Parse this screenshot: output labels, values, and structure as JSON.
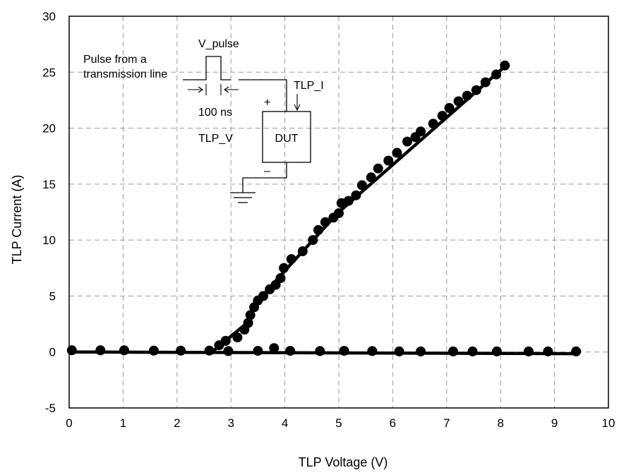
{
  "chart_data": {
    "type": "scatter",
    "xlabel": "TLP Voltage (V)",
    "ylabel": "TLP Current (A)",
    "xlim": [
      0,
      10
    ],
    "ylim": [
      -5,
      30
    ],
    "xticks": [
      0,
      1,
      2,
      3,
      4,
      5,
      6,
      7,
      8,
      9,
      10
    ],
    "yticks": [
      -5,
      0,
      5,
      10,
      15,
      20,
      25,
      30
    ],
    "grid": "dashed",
    "series": [
      {
        "points": [
          [
            0.05,
            0.15
          ],
          [
            0.58,
            0.15
          ],
          [
            1.02,
            0.15
          ],
          [
            1.57,
            0.12
          ],
          [
            2.07,
            0.12
          ],
          [
            2.6,
            0.12
          ],
          [
            2.95,
            0.08
          ],
          [
            3.5,
            0.1
          ],
          [
            3.8,
            0.35
          ],
          [
            4.1,
            0.1
          ],
          [
            4.65,
            0.08
          ],
          [
            5.1,
            0.1
          ],
          [
            5.62,
            0.08
          ],
          [
            6.12,
            0.05
          ],
          [
            6.52,
            0.05
          ],
          [
            7.12,
            0.05
          ],
          [
            7.48,
            0.05
          ],
          [
            7.93,
            0.05
          ],
          [
            8.52,
            0.05
          ],
          [
            8.88,
            0.05
          ],
          [
            9.4,
            0.05
          ]
        ],
        "fit_line": [
          [
            0,
            0.0
          ],
          [
            9.4,
            -0.15
          ]
        ]
      },
      {
        "points": [
          [
            2.78,
            0.6
          ],
          [
            2.9,
            1.0
          ],
          [
            3.12,
            1.3
          ],
          [
            3.25,
            2.0
          ],
          [
            3.32,
            2.6
          ],
          [
            3.36,
            3.3
          ],
          [
            3.43,
            4.0
          ],
          [
            3.5,
            4.6
          ],
          [
            3.6,
            5.0
          ],
          [
            3.72,
            5.6
          ],
          [
            3.83,
            6.0
          ],
          [
            3.92,
            6.6
          ],
          [
            3.98,
            7.5
          ],
          [
            4.12,
            8.3
          ],
          [
            4.33,
            9.0
          ],
          [
            4.52,
            10.0
          ],
          [
            4.62,
            10.9
          ],
          [
            4.75,
            11.6
          ],
          [
            4.9,
            12.0
          ],
          [
            5.0,
            12.4
          ],
          [
            5.05,
            13.3
          ],
          [
            5.18,
            13.5
          ],
          [
            5.32,
            14.0
          ],
          [
            5.43,
            14.9
          ],
          [
            5.6,
            15.6
          ],
          [
            5.73,
            16.4
          ],
          [
            5.92,
            17.1
          ],
          [
            6.08,
            17.8
          ],
          [
            6.27,
            18.8
          ],
          [
            6.42,
            19.2
          ],
          [
            6.52,
            19.7
          ],
          [
            6.75,
            20.4
          ],
          [
            6.92,
            21.1
          ],
          [
            7.05,
            21.8
          ],
          [
            7.22,
            22.4
          ],
          [
            7.38,
            22.9
          ],
          [
            7.55,
            23.4
          ],
          [
            7.72,
            24.1
          ],
          [
            7.92,
            24.8
          ],
          [
            8.08,
            25.6
          ]
        ],
        "fit_line": [
          [
            2.7,
            0.2
          ],
          [
            3.3,
            2.6
          ],
          [
            3.4,
            4.0
          ],
          [
            3.95,
            7.0
          ],
          [
            5.0,
            12.5
          ],
          [
            8.1,
            25.6
          ]
        ]
      }
    ]
  },
  "inset": {
    "pulse_label": "Pulse from a",
    "pulse_label2": "transmission line",
    "vpulse": "V_pulse",
    "width": "100 ns",
    "tlp_v": "TLP_V",
    "tlp_i": "TLP_I",
    "dut": "DUT",
    "plus": "+",
    "minus": "–"
  },
  "colors": {
    "marker": "#000000",
    "grid": "#9a9a9a"
  }
}
